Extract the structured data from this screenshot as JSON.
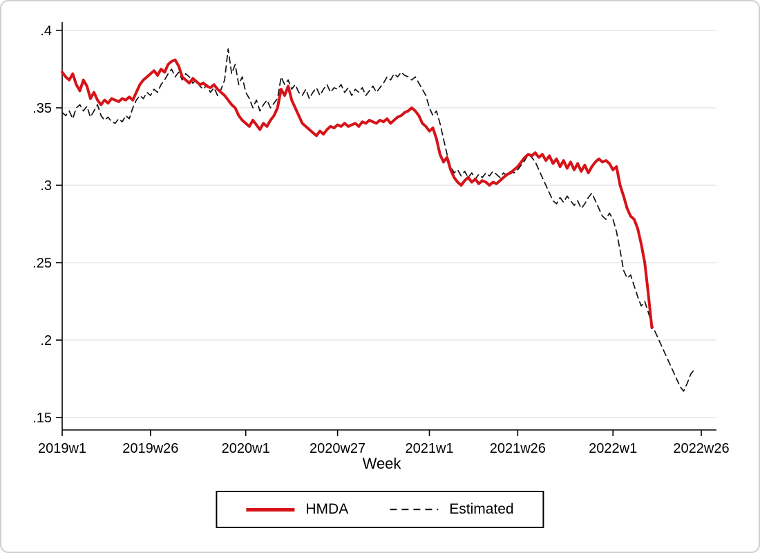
{
  "figure": {
    "xlabel": "Week",
    "background": "#ffffff",
    "frame_border": "#cfcfcf"
  },
  "style": {
    "grid_color": "#e3e9ef",
    "axis_color": "#000000",
    "text_color": "#000000",
    "tick_font_size": 20
  },
  "chart_data": {
    "type": "line",
    "title": "",
    "xlabel": "Week",
    "ylabel": "",
    "x_unit": "Stata weekly date; x = weeks elapsed since 2019w1 (index 0, step 1 week)",
    "ylim": [
      0.15,
      0.4
    ],
    "xlim_weeks": [
      0,
      185
    ],
    "grid": true,
    "legend_position": "bottom-center",
    "yticks": [
      0.4,
      0.35,
      0.3,
      0.25,
      0.2,
      0.15
    ],
    "ytick_labels": [
      ".4",
      ".35",
      ".3",
      ".25",
      ".2",
      ".15"
    ],
    "xticks": [
      0,
      25,
      52,
      78,
      104,
      129,
      156,
      181
    ],
    "xtick_labels": [
      "2019w1",
      "2019w26",
      "2020w1",
      "2020w27",
      "2021w1",
      "2021w26",
      "2022w1",
      "2022w26"
    ],
    "series": [
      {
        "name": "HMDA",
        "color": "#d61318",
        "dash": false,
        "width": 4,
        "x_start": 0,
        "x_step_weeks": 1,
        "y": [
          0.373,
          0.37,
          0.368,
          0.372,
          0.365,
          0.361,
          0.368,
          0.364,
          0.356,
          0.36,
          0.355,
          0.352,
          0.355,
          0.353,
          0.356,
          0.355,
          0.354,
          0.356,
          0.355,
          0.357,
          0.355,
          0.36,
          0.365,
          0.368,
          0.37,
          0.372,
          0.374,
          0.371,
          0.375,
          0.373,
          0.378,
          0.38,
          0.381,
          0.377,
          0.37,
          0.368,
          0.366,
          0.369,
          0.367,
          0.365,
          0.366,
          0.364,
          0.363,
          0.365,
          0.362,
          0.36,
          0.358,
          0.355,
          0.352,
          0.35,
          0.345,
          0.342,
          0.34,
          0.338,
          0.342,
          0.339,
          0.336,
          0.34,
          0.338,
          0.342,
          0.345,
          0.35,
          0.362,
          0.358,
          0.364,
          0.355,
          0.35,
          0.345,
          0.34,
          0.338,
          0.336,
          0.334,
          0.332,
          0.335,
          0.333,
          0.336,
          0.338,
          0.337,
          0.339,
          0.338,
          0.34,
          0.338,
          0.339,
          0.34,
          0.338,
          0.341,
          0.34,
          0.342,
          0.341,
          0.34,
          0.342,
          0.341,
          0.343,
          0.34,
          0.342,
          0.344,
          0.345,
          0.347,
          0.348,
          0.35,
          0.348,
          0.345,
          0.34,
          0.338,
          0.335,
          0.337,
          0.33,
          0.32,
          0.315,
          0.318,
          0.31,
          0.305,
          0.302,
          0.3,
          0.303,
          0.305,
          0.302,
          0.304,
          0.301,
          0.303,
          0.302,
          0.3,
          0.302,
          0.301,
          0.303,
          0.305,
          0.307,
          0.308,
          0.31,
          0.312,
          0.315,
          0.318,
          0.32,
          0.319,
          0.321,
          0.318,
          0.32,
          0.316,
          0.319,
          0.314,
          0.317,
          0.312,
          0.316,
          0.311,
          0.315,
          0.31,
          0.314,
          0.309,
          0.313,
          0.308,
          0.312,
          0.315,
          0.317,
          0.315,
          0.316,
          0.314,
          0.31,
          0.312,
          0.3,
          0.293,
          0.285,
          0.28,
          0.278,
          0.272,
          0.262,
          0.25,
          0.23,
          0.208
        ]
      },
      {
        "name": "Estimated",
        "color": "#111111",
        "dash": true,
        "width": 1.7,
        "x_start": 0,
        "x_step_weeks": 1,
        "y": [
          0.347,
          0.345,
          0.348,
          0.343,
          0.35,
          0.352,
          0.348,
          0.351,
          0.344,
          0.348,
          0.352,
          0.345,
          0.342,
          0.344,
          0.341,
          0.34,
          0.343,
          0.341,
          0.345,
          0.343,
          0.35,
          0.355,
          0.358,
          0.356,
          0.36,
          0.358,
          0.362,
          0.36,
          0.365,
          0.368,
          0.372,
          0.375,
          0.37,
          0.373,
          0.368,
          0.372,
          0.37,
          0.366,
          0.368,
          0.364,
          0.362,
          0.365,
          0.36,
          0.363,
          0.358,
          0.362,
          0.368,
          0.388,
          0.372,
          0.378,
          0.365,
          0.37,
          0.36,
          0.356,
          0.35,
          0.355,
          0.348,
          0.352,
          0.355,
          0.35,
          0.353,
          0.356,
          0.37,
          0.365,
          0.368,
          0.362,
          0.365,
          0.36,
          0.358,
          0.362,
          0.356,
          0.36,
          0.363,
          0.358,
          0.362,
          0.365,
          0.36,
          0.363,
          0.362,
          0.365,
          0.36,
          0.363,
          0.358,
          0.362,
          0.36,
          0.363,
          0.358,
          0.361,
          0.364,
          0.36,
          0.363,
          0.366,
          0.37,
          0.368,
          0.372,
          0.37,
          0.373,
          0.371,
          0.37,
          0.368,
          0.37,
          0.366,
          0.362,
          0.358,
          0.35,
          0.345,
          0.348,
          0.34,
          0.33,
          0.32,
          0.312,
          0.308,
          0.31,
          0.306,
          0.309,
          0.305,
          0.308,
          0.304,
          0.307,
          0.305,
          0.308,
          0.306,
          0.309,
          0.307,
          0.305,
          0.308,
          0.306,
          0.309,
          0.308,
          0.31,
          0.313,
          0.316,
          0.32,
          0.318,
          0.315,
          0.31,
          0.305,
          0.3,
          0.295,
          0.29,
          0.288,
          0.292,
          0.289,
          0.293,
          0.29,
          0.287,
          0.29,
          0.285,
          0.288,
          0.292,
          0.295,
          0.29,
          0.285,
          0.28,
          0.278,
          0.282,
          0.278,
          0.27,
          0.258,
          0.245,
          0.24,
          0.242,
          0.235,
          0.228,
          0.222,
          0.225,
          0.218,
          0.21,
          0.205,
          0.2,
          0.195,
          0.19,
          0.185,
          0.18,
          0.175,
          0.17,
          0.167,
          0.172,
          0.178,
          0.181
        ]
      }
    ]
  },
  "legend": {
    "entries": [
      {
        "label": "HMDA",
        "sample": "solid-red-line"
      },
      {
        "label": "Estimated",
        "sample": "dashed-black-line"
      }
    ]
  }
}
